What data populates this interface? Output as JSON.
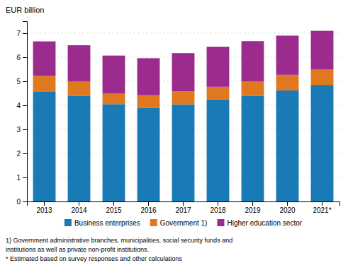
{
  "chart_data": {
    "type": "bar",
    "stacked": true,
    "ylabel": "EUR billion",
    "categories": [
      "2013",
      "2014",
      "2015",
      "2016",
      "2017",
      "2018",
      "2019",
      "2020",
      "2021*"
    ],
    "series": [
      {
        "name": "Business enterprises",
        "color": "#1a7ab5",
        "values": [
          4.58,
          4.4,
          4.05,
          3.9,
          4.04,
          4.25,
          4.4,
          4.62,
          4.85
        ]
      },
      {
        "name": "Government 1)",
        "color": "#e07820",
        "values": [
          0.65,
          0.6,
          0.45,
          0.52,
          0.54,
          0.52,
          0.6,
          0.65,
          0.65
        ]
      },
      {
        "name": "Higher education sector",
        "color": "#9b2c8e",
        "values": [
          1.43,
          1.5,
          1.57,
          1.54,
          1.59,
          1.67,
          1.67,
          1.63,
          1.6
        ]
      }
    ],
    "ylim": [
      0,
      7.5
    ],
    "yticks": [
      0,
      1,
      2,
      3,
      4,
      5,
      6,
      7
    ],
    "grid": true,
    "legend": "bottom",
    "annotations": [
      "1) Government administrative branches, municipalities, social security funds and",
      "institutions as well as private non-profit institutions.",
      "* Estimated  based on survey responses and other calculations"
    ]
  }
}
